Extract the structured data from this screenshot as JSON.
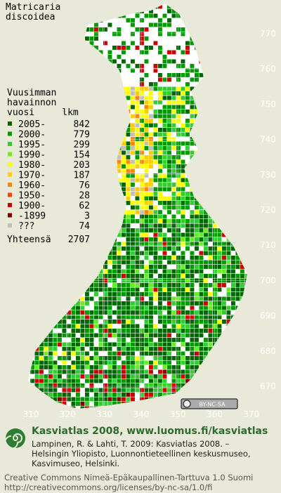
{
  "title": [
    "Matricaria",
    "discoidea"
  ],
  "legend": {
    "header": [
      "Vuusimman",
      "havainnon",
      "vuosi"
    ],
    "count_header": "lkm",
    "rows": [
      {
        "label": "2005-",
        "count": 842,
        "color": "#006600"
      },
      {
        "label": "2000-",
        "count": 779,
        "color": "#009900"
      },
      {
        "label": "1995-",
        "count": 299,
        "color": "#33cc33"
      },
      {
        "label": "1990-",
        "count": 154,
        "color": "#66ee22"
      },
      {
        "label": "1980-",
        "count": 203,
        "color": "#ffff00"
      },
      {
        "label": "1970-",
        "count": 187,
        "color": "#ffcc00"
      },
      {
        "label": "1960-",
        "count": 76,
        "color": "#ff8800"
      },
      {
        "label": "1950-",
        "count": 28,
        "color": "#ff4400"
      },
      {
        "label": "1900-",
        "count": 62,
        "color": "#cc0000"
      },
      {
        "label": "-1899",
        "count": 3,
        "color": "#800000"
      },
      {
        "label": "???",
        "count": 74,
        "color": "#c0c0c0"
      }
    ],
    "total_label": "Yhteensä",
    "total": 2707
  },
  "grid_north": [
    770,
    760,
    750,
    740,
    730,
    720,
    710,
    700,
    690,
    680,
    670
  ],
  "grid_east": [
    310,
    320,
    330,
    340,
    350,
    360,
    370
  ],
  "badge": "BY-NC-SA",
  "footer": {
    "site": "Kasviatlas 2008, www.luomus.fi/kasviatlas",
    "citation": [
      "Lampinen, R. & Lahti, T. 2009: Kasviatlas 2008. –",
      "Helsingin Yliopisto, Luonnontieteellinen keskusmuseo,",
      "Kasvimuseo, Helsinki."
    ],
    "license": [
      "Creative Commons Nimeä-Epäkaupallinen-Tarttuva 1.0 Suomi",
      "http://creativecommons.org/licenses/by-nc-sa/1.0/fi"
    ]
  }
}
